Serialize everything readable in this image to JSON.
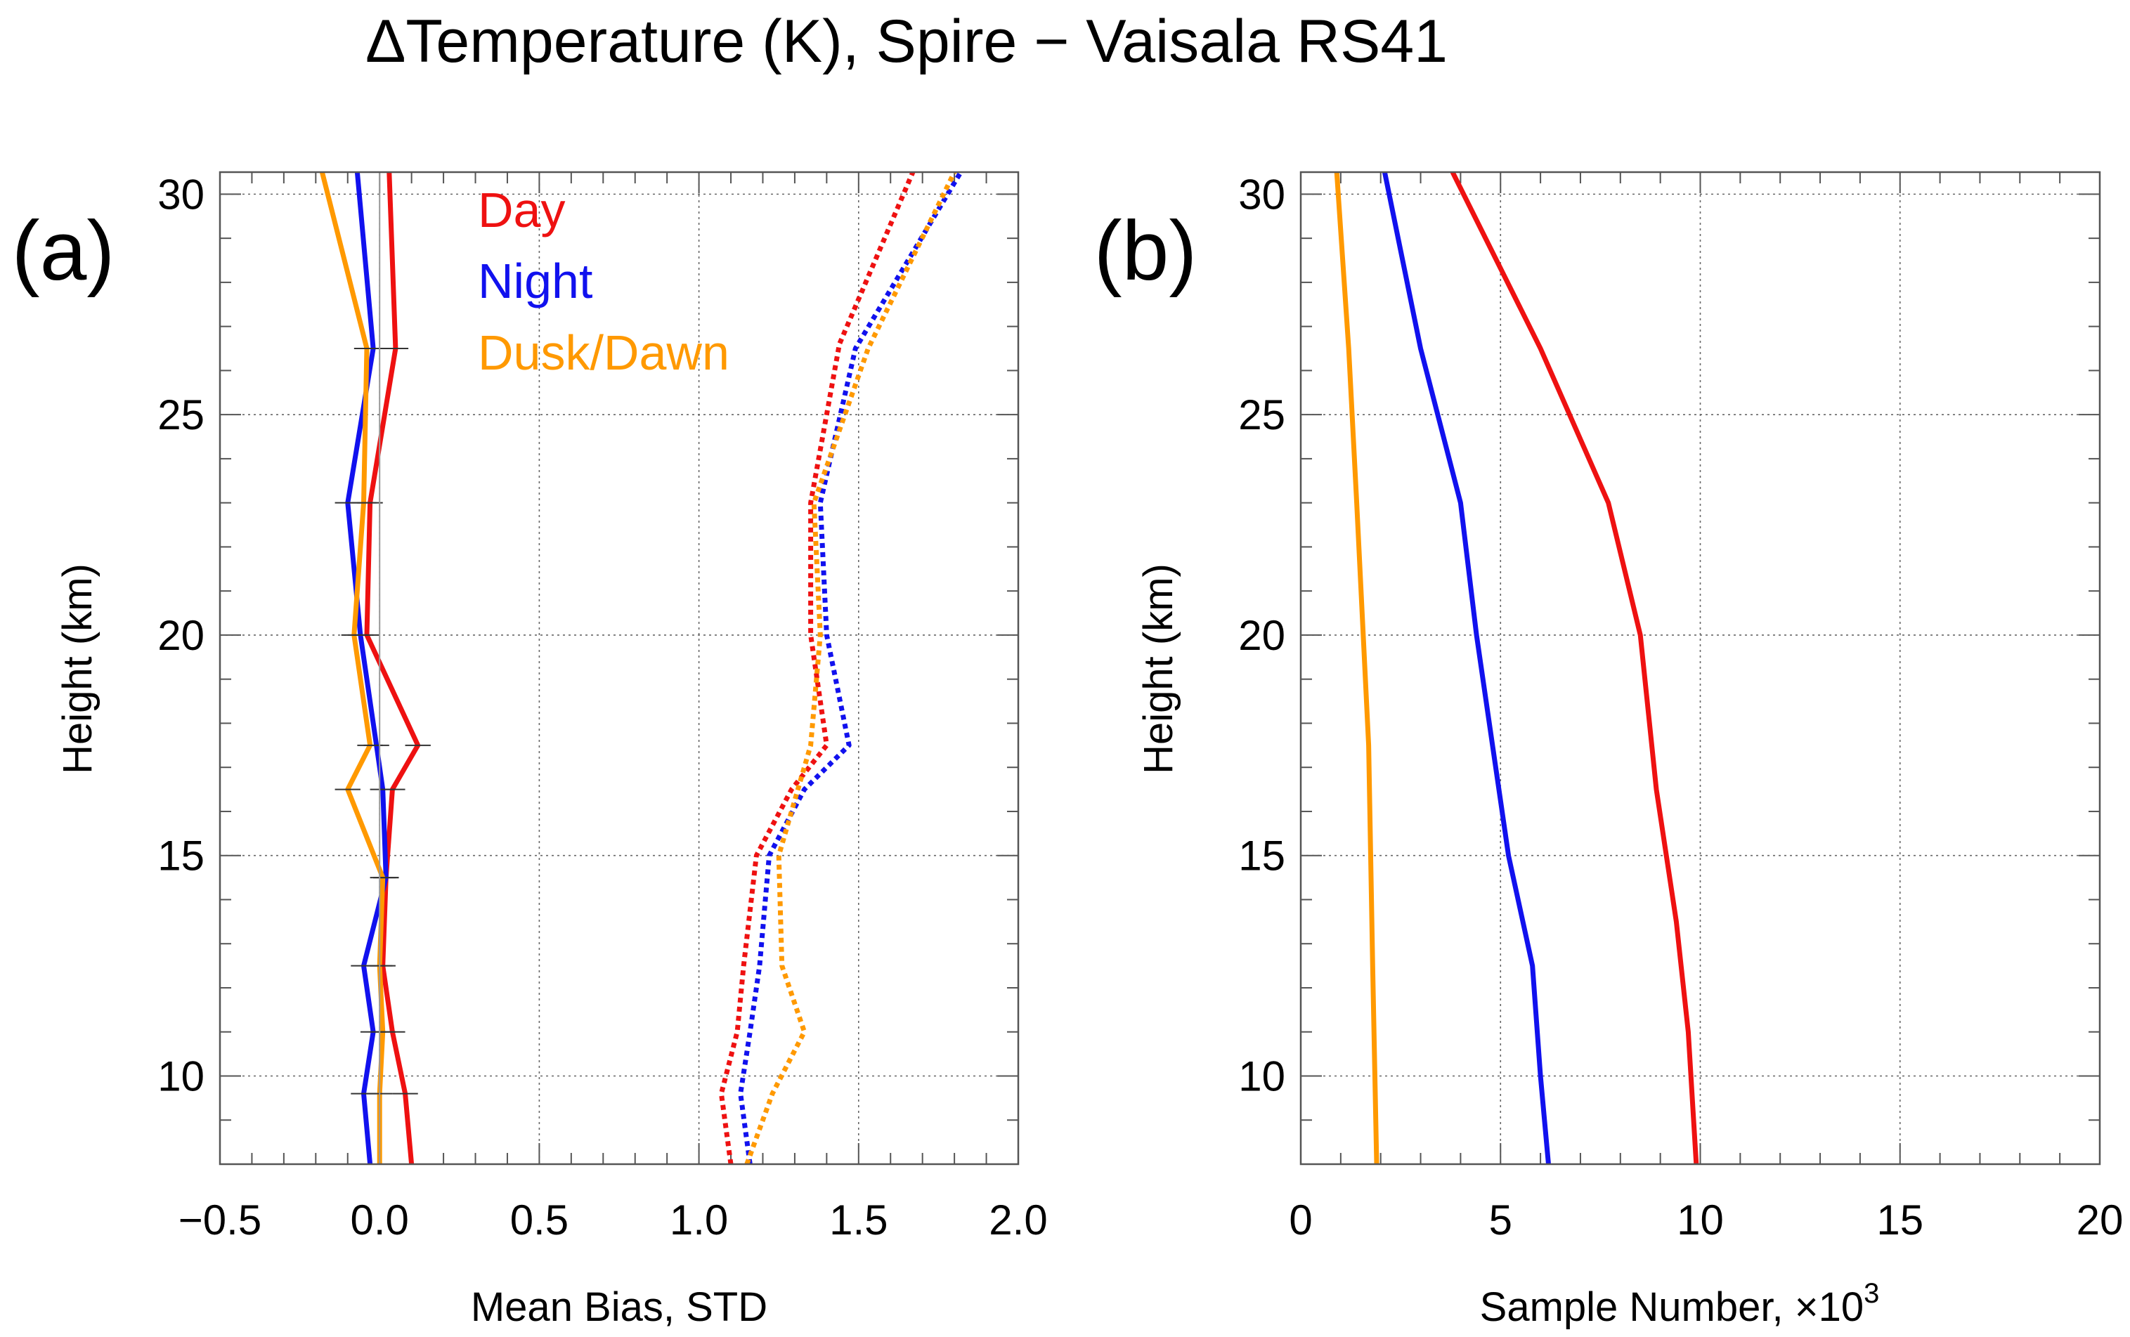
{
  "figure": {
    "title": "ΔTemperature (K), Spire − Vaisala RS41",
    "units_note": "",
    "colors": {
      "day": "#ee1111",
      "night": "#1111ee",
      "dusk": "#ff9900",
      "grid": "#555555",
      "axis": "#555555"
    }
  },
  "chart_data": [
    {
      "panel_label": "(a)",
      "type": "line",
      "title": "",
      "xlabel": "Mean Bias, STD",
      "ylabel": "Height (km)",
      "xlim": [
        -0.5,
        2.0
      ],
      "ylim": [
        8,
        30.5
      ],
      "xticks": [
        -0.5,
        0.0,
        0.5,
        1.0,
        1.5,
        2.0
      ],
      "xtick_labels": [
        "−0.5",
        "0.0",
        "0.5",
        "1.0",
        "1.5",
        "2.0"
      ],
      "yticks": [
        10,
        15,
        20,
        25,
        30
      ],
      "ytick_labels": [
        "10",
        "15",
        "20",
        "25",
        "30"
      ],
      "grid": true,
      "legend_position": "top-left",
      "legend": [
        {
          "label": "Day",
          "color": "#ee1111"
        },
        {
          "label": "Night",
          "color": "#1111ee"
        },
        {
          "label": "Dusk/Dawn",
          "color": "#ff9900"
        }
      ],
      "series": [
        {
          "name": "Day mean bias",
          "style": "solid",
          "color": "#ee1111",
          "points": [
            [
              0.1,
              8
            ],
            [
              0.08,
              9.6
            ],
            [
              0.04,
              11
            ],
            [
              0.01,
              12.5
            ],
            [
              0.02,
              14.5
            ],
            [
              0.04,
              16.5
            ],
            [
              0.12,
              17.5
            ],
            [
              -0.04,
              20
            ],
            [
              -0.03,
              23
            ],
            [
              0.05,
              26.5
            ],
            [
              0.03,
              30.5
            ]
          ]
        },
        {
          "name": "Night mean bias",
          "style": "solid",
          "color": "#1111ee",
          "points": [
            [
              -0.03,
              8
            ],
            [
              -0.05,
              9.6
            ],
            [
              -0.02,
              11
            ],
            [
              -0.05,
              12.5
            ],
            [
              0.02,
              14.5
            ],
            [
              0.01,
              16.5
            ],
            [
              -0.01,
              17.5
            ],
            [
              -0.06,
              20
            ],
            [
              -0.1,
              23
            ],
            [
              -0.02,
              26.5
            ],
            [
              -0.07,
              30.5
            ]
          ]
        },
        {
          "name": "Dusk/Dawn mean bias",
          "style": "solid",
          "color": "#ff9900",
          "points": [
            [
              0.0,
              8
            ],
            [
              0.0,
              9.6
            ],
            [
              0.01,
              11
            ],
            [
              0.0,
              12.5
            ],
            [
              0.01,
              14.5
            ],
            [
              -0.1,
              16.5
            ],
            [
              -0.03,
              17.5
            ],
            [
              -0.08,
              20
            ],
            [
              -0.05,
              23
            ],
            [
              -0.04,
              26.5
            ],
            [
              -0.18,
              30.5
            ]
          ]
        },
        {
          "name": "Day STD",
          "style": "dotted",
          "color": "#ee1111",
          "points": [
            [
              1.1,
              8
            ],
            [
              1.07,
              9.6
            ],
            [
              1.12,
              11
            ],
            [
              1.14,
              12.5
            ],
            [
              1.18,
              15
            ],
            [
              1.29,
              16.5
            ],
            [
              1.4,
              17.5
            ],
            [
              1.35,
              20
            ],
            [
              1.35,
              23
            ],
            [
              1.44,
              26.6
            ],
            [
              1.67,
              30.5
            ]
          ]
        },
        {
          "name": "Night STD",
          "style": "dotted",
          "color": "#1111ee",
          "points": [
            [
              1.16,
              8
            ],
            [
              1.13,
              9.6
            ],
            [
              1.16,
              11
            ],
            [
              1.19,
              12.5
            ],
            [
              1.22,
              15
            ],
            [
              1.33,
              16.5
            ],
            [
              1.47,
              17.5
            ],
            [
              1.4,
              20
            ],
            [
              1.38,
              23
            ],
            [
              1.49,
              26.5
            ],
            [
              1.82,
              30.5
            ]
          ]
        },
        {
          "name": "Dusk/Dawn STD",
          "style": "dotted",
          "color": "#ff9900",
          "points": [
            [
              1.15,
              8
            ],
            [
              1.23,
              9.6
            ],
            [
              1.33,
              11
            ],
            [
              1.26,
              12.5
            ],
            [
              1.25,
              15
            ],
            [
              1.35,
              17.5
            ],
            [
              1.38,
              20
            ],
            [
              1.36,
              23
            ],
            [
              1.53,
              26.5
            ],
            [
              1.8,
              30.5
            ]
          ]
        }
      ],
      "error_bars": {
        "Day": [
          [
            0.1,
            8
          ],
          [
            0.08,
            9.6
          ],
          [
            0.04,
            11
          ],
          [
            0.01,
            12.5
          ],
          [
            0.02,
            14.5
          ],
          [
            0.04,
            16.5
          ],
          [
            0.12,
            17.5
          ],
          [
            -0.04,
            20
          ],
          [
            -0.03,
            23
          ],
          [
            0.05,
            26.5
          ],
          [
            0.03,
            30.5
          ]
        ],
        "half_width": 0.04
      }
    },
    {
      "panel_label": "(b)",
      "type": "line",
      "title": "",
      "xlabel": "Sample Number, ×10",
      "xlabel_superscript": "3",
      "ylabel": "Height (km)",
      "xlim": [
        0,
        20
      ],
      "ylim": [
        8,
        30.5
      ],
      "xticks": [
        0,
        5,
        10,
        15,
        20
      ],
      "xtick_labels": [
        "0",
        "5",
        "10",
        "15",
        "20"
      ],
      "yticks": [
        10,
        15,
        20,
        25,
        30
      ],
      "ytick_labels": [
        "10",
        "15",
        "20",
        "25",
        "30"
      ],
      "grid": true,
      "series": [
        {
          "name": "Day",
          "style": "solid",
          "color": "#ee1111",
          "points": [
            [
              9.9,
              8
            ],
            [
              9.7,
              11
            ],
            [
              9.4,
              13.5
            ],
            [
              8.9,
              16.5
            ],
            [
              8.5,
              20
            ],
            [
              7.7,
              23
            ],
            [
              6.0,
              26.5
            ],
            [
              3.8,
              30.5
            ]
          ]
        },
        {
          "name": "Night",
          "style": "solid",
          "color": "#1111ee",
          "points": [
            [
              6.2,
              8
            ],
            [
              6.0,
              10
            ],
            [
              5.8,
              12.5
            ],
            [
              5.2,
              15
            ],
            [
              4.4,
              20
            ],
            [
              4.0,
              23
            ],
            [
              3.0,
              26.5
            ],
            [
              2.1,
              30.5
            ]
          ]
        },
        {
          "name": "Dusk/Dawn",
          "style": "solid",
          "color": "#ff9900",
          "points": [
            [
              1.9,
              8
            ],
            [
              1.8,
              12.5
            ],
            [
              1.7,
              17.5
            ],
            [
              1.4,
              23
            ],
            [
              1.2,
              26.5
            ],
            [
              0.9,
              30.5
            ]
          ]
        }
      ]
    }
  ]
}
